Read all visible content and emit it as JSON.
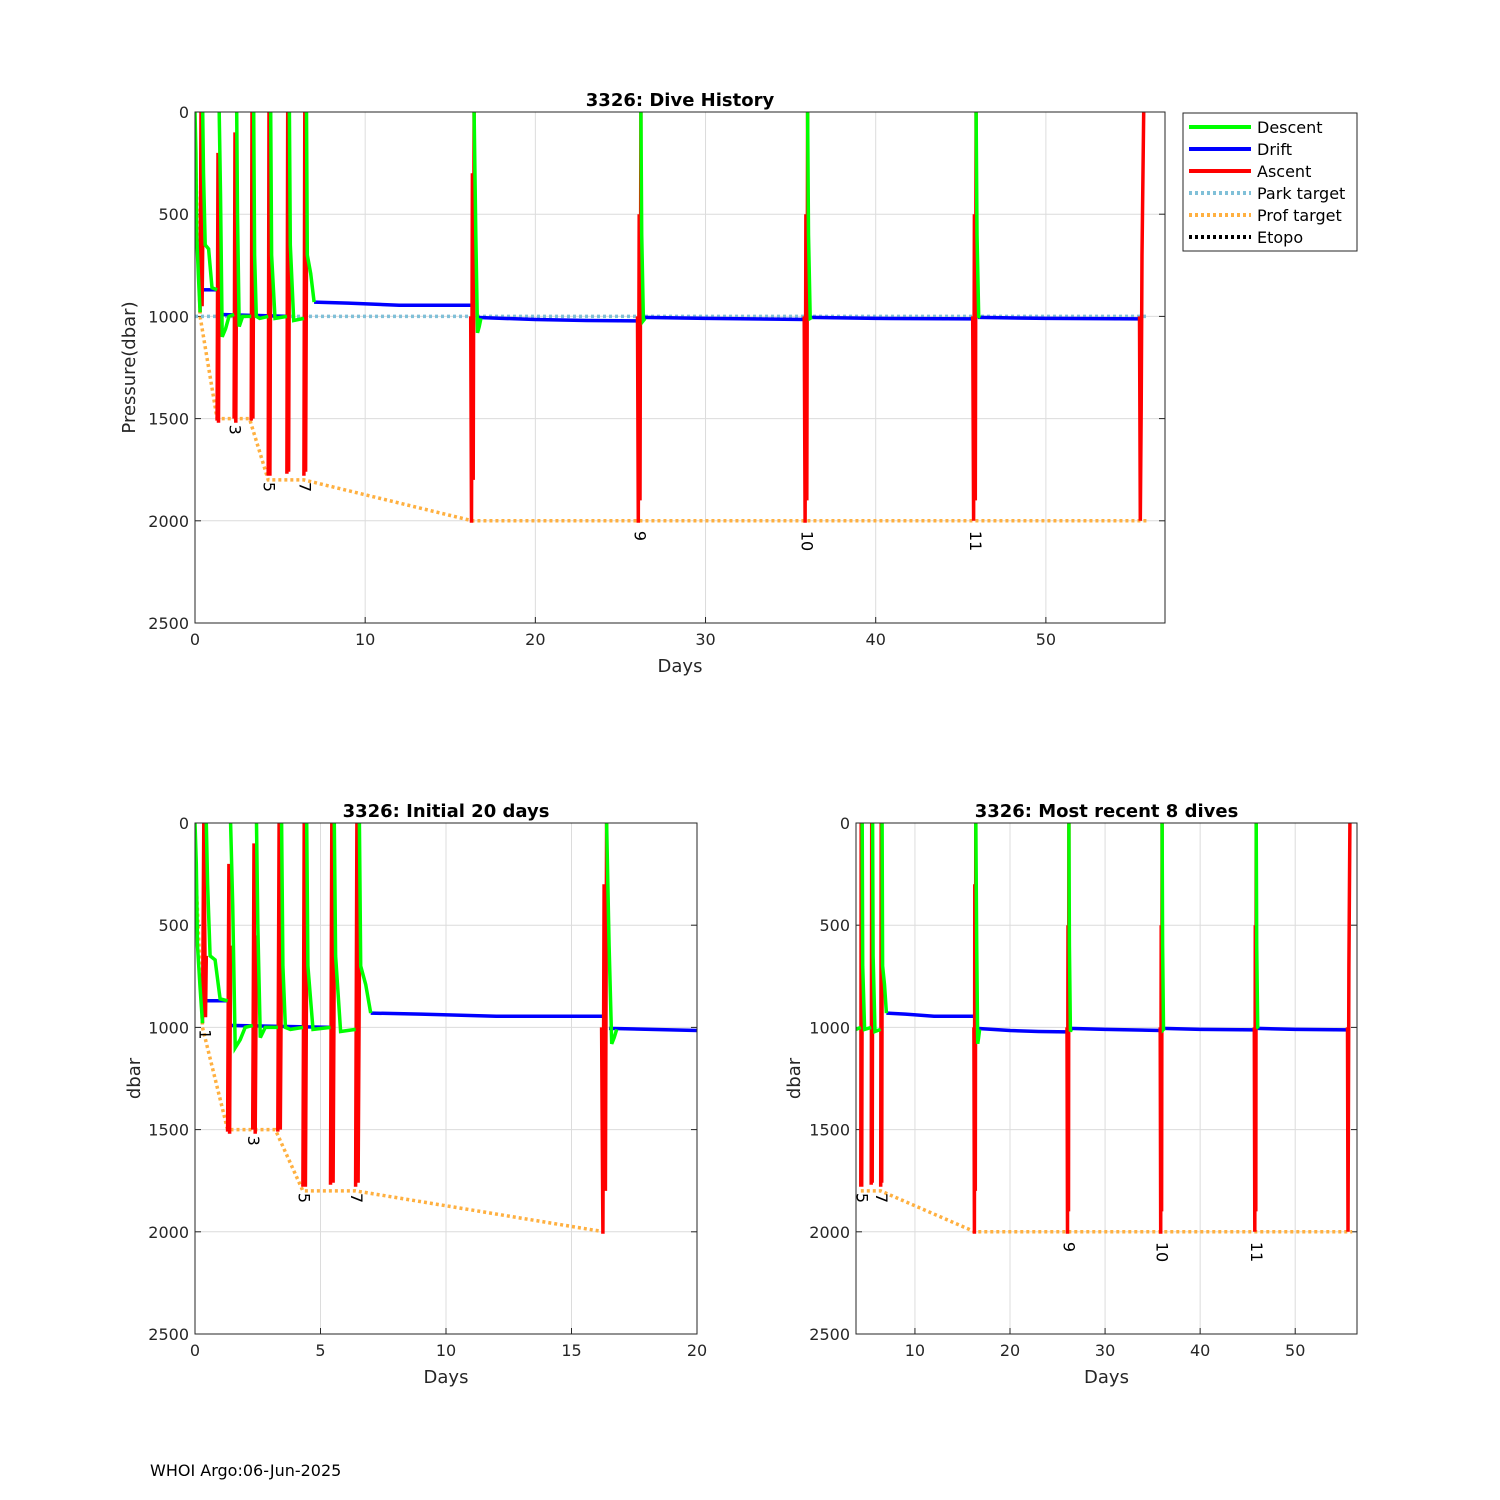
{
  "footer": "WHOI Argo:06-Jun-2025",
  "colors": {
    "descent": "#00ff00",
    "drift": "#0000ff",
    "ascent": "#ff0000",
    "park_target": "#80c0d8",
    "prof_target": "#ffb040",
    "etopo": "#000000",
    "grid": "#dcdcdc"
  },
  "legend": [
    "Descent",
    "Drift",
    "Ascent",
    "Park target",
    "Prof target",
    "Etopo"
  ],
  "chart_data": [
    {
      "id": "full",
      "type": "line",
      "title": "3326: Dive History",
      "xlabel": "Days",
      "ylabel": "Pressure(dbar)",
      "xlim": [
        0,
        57
      ],
      "ylim": [
        0,
        2500
      ],
      "y_reversed": true,
      "xticks": [
        0,
        10,
        20,
        30,
        40,
        50
      ],
      "yticks": [
        0,
        500,
        1000,
        1500,
        2000,
        2500
      ],
      "grid": true,
      "legend_position": "outside-top-right",
      "dive_labels": [
        {
          "text": "3",
          "x": 2.3,
          "y": 1500
        },
        {
          "text": "5",
          "x": 4.3,
          "y": 1780
        },
        {
          "text": "7",
          "x": 6.4,
          "y": 1780
        },
        {
          "text": "9",
          "x": 26.1,
          "y": 2020
        },
        {
          "text": "10",
          "x": 35.9,
          "y": 2020
        },
        {
          "text": "11",
          "x": 45.8,
          "y": 2020
        }
      ]
    },
    {
      "id": "initial",
      "type": "line",
      "title": "3326: Initial 20 days",
      "xlabel": "Days",
      "ylabel": "dbar",
      "xlim": [
        0,
        20
      ],
      "ylim": [
        0,
        2500
      ],
      "y_reversed": true,
      "xticks": [
        0,
        5,
        10,
        15,
        20
      ],
      "yticks": [
        0,
        500,
        1000,
        1500,
        2000,
        2500
      ],
      "grid": true,
      "dive_labels": [
        {
          "text": "1",
          "x": 0.35,
          "y": 980
        },
        {
          "text": "3",
          "x": 2.3,
          "y": 1500
        },
        {
          "text": "5",
          "x": 4.3,
          "y": 1780
        },
        {
          "text": "7",
          "x": 6.4,
          "y": 1780
        }
      ]
    },
    {
      "id": "recent",
      "type": "line",
      "title": "3326: Most recent 8 dives",
      "xlabel": "Days",
      "ylabel": "dbar",
      "xlim": [
        3.8,
        56.5
      ],
      "ylim": [
        0,
        2500
      ],
      "y_reversed": true,
      "xticks": [
        10,
        20,
        30,
        40,
        50
      ],
      "yticks": [
        0,
        500,
        1000,
        1500,
        2000,
        2500
      ],
      "grid": true,
      "dive_labels": [
        {
          "text": "5",
          "x": 4.3,
          "y": 1780
        },
        {
          "text": "7",
          "x": 6.4,
          "y": 1780
        },
        {
          "text": "9",
          "x": 26.1,
          "y": 2020
        },
        {
          "text": "10",
          "x": 35.9,
          "y": 2020
        },
        {
          "text": "11",
          "x": 45.8,
          "y": 2020
        }
      ]
    }
  ],
  "series": {
    "prof_target": [
      [
        0,
        150
      ],
      [
        0.3,
        1000
      ],
      [
        1.3,
        1500
      ],
      [
        3.2,
        1500
      ],
      [
        4.3,
        1800
      ],
      [
        6.4,
        1800
      ],
      [
        16.3,
        2000
      ],
      [
        56.0,
        2000
      ]
    ],
    "park_target": [
      [
        0,
        1000
      ],
      [
        56.0,
        1000
      ]
    ],
    "drift": [
      [
        [
          0.4,
          870
        ],
        [
          1.3,
          870
        ]
      ],
      [
        [
          1.3,
          990
        ],
        [
          5.5,
          1000
        ]
      ],
      [
        [
          7.0,
          930
        ],
        [
          9.0,
          935
        ],
        [
          12.0,
          945
        ],
        [
          16.3,
          945
        ]
      ],
      [
        [
          16.5,
          1005
        ],
        [
          20.0,
          1015
        ],
        [
          23.0,
          1020
        ],
        [
          26.0,
          1022
        ]
      ],
      [
        [
          26.3,
          1005
        ],
        [
          30.0,
          1010
        ],
        [
          35.9,
          1015
        ]
      ],
      [
        [
          36.1,
          1005
        ],
        [
          40.0,
          1010
        ],
        [
          45.8,
          1012
        ]
      ],
      [
        [
          46.0,
          1005
        ],
        [
          50.0,
          1010
        ],
        [
          55.6,
          1012
        ]
      ]
    ],
    "ascent": [
      [
        [
          0.3,
          980
        ],
        [
          0.35,
          0
        ],
        [
          0.42,
          950
        ],
        [
          0.45,
          650
        ]
      ],
      [
        [
          1.3,
          1510
        ],
        [
          1.35,
          200
        ],
        [
          1.38,
          1520
        ],
        [
          1.42,
          600
        ]
      ],
      [
        [
          2.3,
          1500
        ],
        [
          2.35,
          100
        ],
        [
          2.4,
          1520
        ],
        [
          2.45,
          550
        ]
      ],
      [
        [
          3.3,
          1510
        ],
        [
          3.35,
          0
        ],
        [
          3.4,
          1500
        ],
        [
          3.45,
          580
        ]
      ],
      [
        [
          4.3,
          1780
        ],
        [
          4.35,
          0
        ],
        [
          4.4,
          1780
        ],
        [
          4.45,
          620
        ]
      ],
      [
        [
          5.4,
          1770
        ],
        [
          5.45,
          0
        ],
        [
          5.5,
          1760
        ],
        [
          5.55,
          600
        ]
      ],
      [
        [
          6.4,
          1780
        ],
        [
          6.45,
          0
        ],
        [
          6.5,
          1760
        ],
        [
          6.55,
          700
        ]
      ],
      [
        [
          16.2,
          1000
        ],
        [
          16.25,
          2010
        ],
        [
          16.3,
          300
        ],
        [
          16.35,
          1800
        ],
        [
          16.4,
          0
        ]
      ],
      [
        [
          26.0,
          1000
        ],
        [
          26.05,
          2010
        ],
        [
          26.1,
          500
        ],
        [
          26.15,
          1900
        ],
        [
          26.2,
          0
        ]
      ],
      [
        [
          35.8,
          1000
        ],
        [
          35.85,
          2010
        ],
        [
          35.9,
          500
        ],
        [
          35.95,
          1900
        ],
        [
          36.0,
          0
        ]
      ],
      [
        [
          45.7,
          1000
        ],
        [
          45.75,
          2000
        ],
        [
          45.8,
          500
        ],
        [
          45.85,
          1900
        ],
        [
          45.9,
          0
        ]
      ],
      [
        [
          55.5,
          1000
        ],
        [
          55.55,
          2000
        ],
        [
          55.6,
          1450
        ],
        [
          55.65,
          700
        ],
        [
          55.75,
          0
        ]
      ]
    ],
    "descent": [
      [
        [
          0.0,
          0
        ],
        [
          0.05,
          200
        ],
        [
          0.1,
          600
        ],
        [
          0.2,
          800
        ],
        [
          0.3,
          980
        ]
      ],
      [
        [
          0.45,
          0
        ],
        [
          0.5,
          300
        ],
        [
          0.6,
          650
        ],
        [
          0.8,
          670
        ],
        [
          1.0,
          860
        ],
        [
          1.3,
          870
        ]
      ],
      [
        [
          1.42,
          0
        ],
        [
          1.5,
          400
        ],
        [
          1.6,
          1100
        ],
        [
          1.8,
          1060
        ],
        [
          2.0,
          1000
        ],
        [
          2.3,
          990
        ]
      ],
      [
        [
          2.45,
          0
        ],
        [
          2.5,
          500
        ],
        [
          2.6,
          1050
        ],
        [
          2.8,
          1000
        ],
        [
          3.3,
          1000
        ]
      ],
      [
        [
          3.45,
          0
        ],
        [
          3.5,
          700
        ],
        [
          3.6,
          1000
        ],
        [
          3.8,
          1010
        ],
        [
          4.3,
          1000
        ]
      ],
      [
        [
          4.45,
          0
        ],
        [
          4.5,
          700
        ],
        [
          4.7,
          1010
        ],
        [
          5.4,
          1000
        ]
      ],
      [
        [
          5.55,
          0
        ],
        [
          5.6,
          650
        ],
        [
          5.8,
          1020
        ],
        [
          6.4,
          1010
        ]
      ],
      [
        [
          6.55,
          0
        ],
        [
          6.6,
          700
        ],
        [
          6.8,
          790
        ],
        [
          7.0,
          930
        ]
      ],
      [
        [
          16.4,
          0
        ],
        [
          16.5,
          600
        ],
        [
          16.6,
          1080
        ],
        [
          16.7,
          1050
        ],
        [
          16.8,
          1010
        ]
      ],
      [
        [
          26.2,
          0
        ],
        [
          26.25,
          600
        ],
        [
          26.35,
          1020
        ],
        [
          26.45,
          1010
        ]
      ],
      [
        [
          36.0,
          0
        ],
        [
          36.05,
          600
        ],
        [
          36.15,
          1010
        ],
        [
          36.25,
          1005
        ]
      ],
      [
        [
          45.9,
          0
        ],
        [
          45.95,
          600
        ],
        [
          46.05,
          1000
        ],
        [
          46.15,
          1005
        ]
      ]
    ]
  }
}
